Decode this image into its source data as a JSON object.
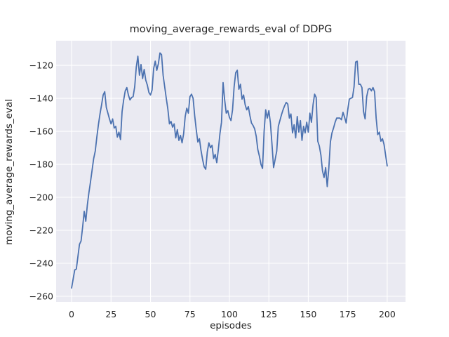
{
  "figure": {
    "title": "moving_average_rewards_eval of DDPG",
    "xlabel": "episodes",
    "ylabel": "moving_average_rewards_eval"
  },
  "chart_data": {
    "type": "line",
    "title": "moving_average_rewards_eval of DDPG",
    "xlabel": "episodes",
    "ylabel": "moving_average_rewards_eval",
    "grid": true,
    "legend_position": "none",
    "background_color": "#EAEAF2",
    "grid_color": "#FFFFFF",
    "text_color": "#262626",
    "line_color": "#4C72B0",
    "xlim": [
      -9.8,
      211.6
    ],
    "ylim": [
      -263.4,
      -105.1
    ],
    "x_tick_values": [
      0,
      25,
      50,
      75,
      100,
      125,
      150,
      175,
      200
    ],
    "x_tick_labels": [
      "0",
      "25",
      "50",
      "75",
      "100",
      "125",
      "150",
      "175",
      "200"
    ],
    "y_tick_values": [
      -120,
      -140,
      -160,
      -180,
      -200,
      -220,
      -240,
      -260
    ],
    "y_tick_labels": [
      "−120",
      "−140",
      "−160",
      "−180",
      "−200",
      "−220",
      "−240",
      "−260"
    ],
    "x_start": 0,
    "x_step": 1,
    "series": [
      {
        "name": "moving_average_rewards_eval",
        "values": [
          -255,
          -249.5,
          -244,
          -243.5,
          -236,
          -228.5,
          -226.5,
          -218,
          -208.5,
          -214.5,
          -204.5,
          -197,
          -190.5,
          -183.5,
          -176.5,
          -172,
          -163.5,
          -156,
          -149.5,
          -144,
          -138,
          -136,
          -145.5,
          -149,
          -152.5,
          -155.5,
          -152.5,
          -158,
          -157,
          -163.5,
          -160.5,
          -165,
          -148,
          -141,
          -135.5,
          -133.5,
          -138,
          -141,
          -139.5,
          -139,
          -133,
          -121,
          -114.5,
          -126,
          -119.5,
          -128,
          -122.5,
          -129,
          -132,
          -136.5,
          -138,
          -135,
          -122,
          -117.5,
          -123,
          -119,
          -112.5,
          -113.5,
          -126,
          -133,
          -140,
          -146.5,
          -155.5,
          -154,
          -157.5,
          -155.5,
          -164,
          -159,
          -165.5,
          -162.5,
          -167,
          -161.5,
          -151,
          -146,
          -149,
          -139,
          -137.5,
          -140,
          -150.5,
          -159,
          -166.5,
          -164.5,
          -171.5,
          -177,
          -181.5,
          -183,
          -172.5,
          -167,
          -170,
          -168.5,
          -176.5,
          -174,
          -179,
          -171,
          -161.5,
          -154.5,
          -130.5,
          -141,
          -149,
          -147.5,
          -151.5,
          -153.5,
          -147,
          -133,
          -124.5,
          -123,
          -134.5,
          -131.5,
          -140.5,
          -138,
          -144,
          -147,
          -145,
          -150.5,
          -155,
          -156.5,
          -158.5,
          -163,
          -171,
          -175,
          -180,
          -182.5,
          -160,
          -147,
          -152,
          -147.5,
          -155,
          -168,
          -182,
          -177,
          -172,
          -157,
          -153.5,
          -150,
          -147,
          -144.5,
          -142.5,
          -143.5,
          -152,
          -149.5,
          -161,
          -156,
          -164,
          -151,
          -160.5,
          -153.5,
          -165.5,
          -157,
          -161,
          -154.5,
          -160.5,
          -149,
          -154.5,
          -144,
          -137.5,
          -139.5,
          -166,
          -169,
          -174.5,
          -184,
          -188,
          -182,
          -193.5,
          -182.5,
          -166.5,
          -161,
          -158,
          -154.5,
          -152,
          -152,
          -152,
          -153,
          -148.5,
          -151.5,
          -155,
          -147,
          -140.5,
          -140,
          -139.5,
          -133,
          -118,
          -117.5,
          -131.5,
          -131.5,
          -133.5,
          -148,
          -152.5,
          -139,
          -134.5,
          -134,
          -135.5,
          -133.5,
          -136,
          -152,
          -162,
          -160.5,
          -166,
          -164.5,
          -168,
          -174.5,
          -181
        ]
      }
    ]
  }
}
